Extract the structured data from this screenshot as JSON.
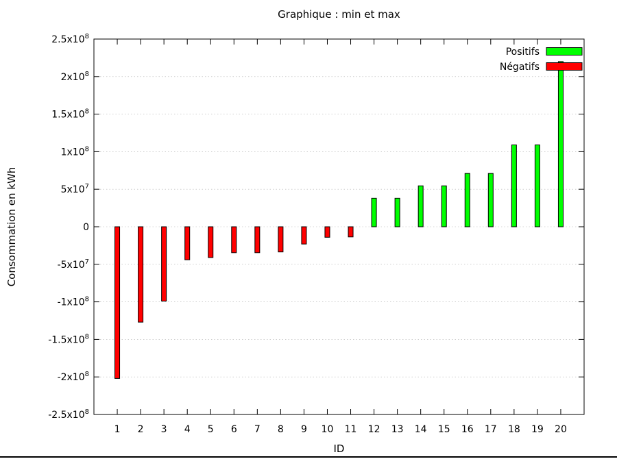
{
  "chart_data": {
    "type": "bar",
    "title": "Graphique : min et max",
    "xlabel": "ID",
    "ylabel": "Consommation en kWh",
    "categories": [
      "1",
      "2",
      "3",
      "4",
      "5",
      "6",
      "7",
      "8",
      "9",
      "10",
      "11",
      "12",
      "13",
      "14",
      "15",
      "16",
      "17",
      "18",
      "19",
      "20"
    ],
    "series": [
      {
        "name": "Positifs",
        "color": "#00ff00",
        "values": [
          null,
          null,
          null,
          null,
          null,
          null,
          null,
          null,
          null,
          null,
          null,
          38000000,
          38000000,
          54500000,
          54500000,
          71000000,
          71000000,
          109000000,
          109000000,
          220000000
        ]
      },
      {
        "name": "Négatifs",
        "color": "#ff0000",
        "values": [
          -202000000,
          -127000000,
          -99000000,
          -44000000,
          -41000000,
          -34500000,
          -34500000,
          -33500000,
          -23000000,
          -14000000,
          -13500000,
          null,
          null,
          null,
          null,
          null,
          null,
          null,
          null,
          null
        ]
      }
    ],
    "yticks": [
      {
        "value": 250000000,
        "mantissa": "2.5",
        "exp": "8"
      },
      {
        "value": 200000000,
        "mantissa": "2",
        "exp": "8"
      },
      {
        "value": 150000000,
        "mantissa": "1.5",
        "exp": "8"
      },
      {
        "value": 100000000,
        "mantissa": "1",
        "exp": "8"
      },
      {
        "value": 50000000,
        "mantissa": "5",
        "exp": "7"
      },
      {
        "value": 0,
        "mantissa": "0",
        "exp": ""
      },
      {
        "value": -50000000,
        "mantissa": "-5",
        "exp": "7"
      },
      {
        "value": -100000000,
        "mantissa": "-1",
        "exp": "8"
      },
      {
        "value": -150000000,
        "mantissa": "-1.5",
        "exp": "8"
      },
      {
        "value": -200000000,
        "mantissa": "-2",
        "exp": "8"
      },
      {
        "value": -250000000,
        "mantissa": "-2.5",
        "exp": "8"
      }
    ],
    "ylim": [
      -250000000,
      250000000
    ],
    "xlim": [
      0,
      21
    ],
    "grid": true,
    "legend_position": "top-right"
  }
}
